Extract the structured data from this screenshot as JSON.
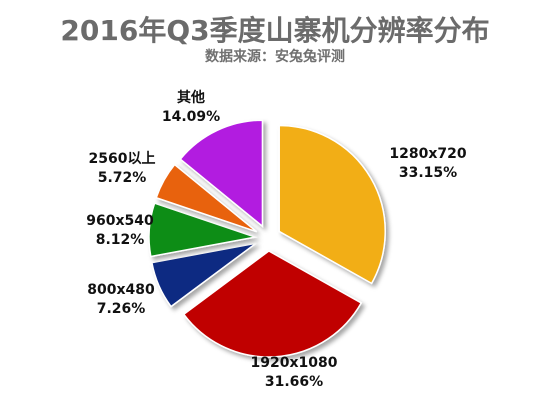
{
  "chart_data": {
    "type": "pie",
    "title": "2016年Q3季度山寨机分辨率分布",
    "subtitle": "数据来源：安兔兔评测",
    "slices": [
      {
        "label": "1280x720",
        "value": 33.15,
        "value_text": "33.15%",
        "color": "#f2ae13"
      },
      {
        "label": "1920x1080",
        "value": 31.66,
        "value_text": "31.66%",
        "color": "#c00000"
      },
      {
        "label": "800x480",
        "value": 7.26,
        "value_text": "7.26%",
        "color": "#0e2a82"
      },
      {
        "label": "960x540",
        "value": 8.12,
        "value_text": "8.12%",
        "color": "#0a8d12"
      },
      {
        "label": "2560以上",
        "value": 5.72,
        "value_text": "5.72%",
        "color": "#e8620f"
      },
      {
        "label": "其他",
        "value": 14.09,
        "value_text": "14.09%",
        "color": "#b21ae0"
      }
    ],
    "start_angle_deg": 0,
    "direction": "clockwise",
    "exploded": true
  }
}
